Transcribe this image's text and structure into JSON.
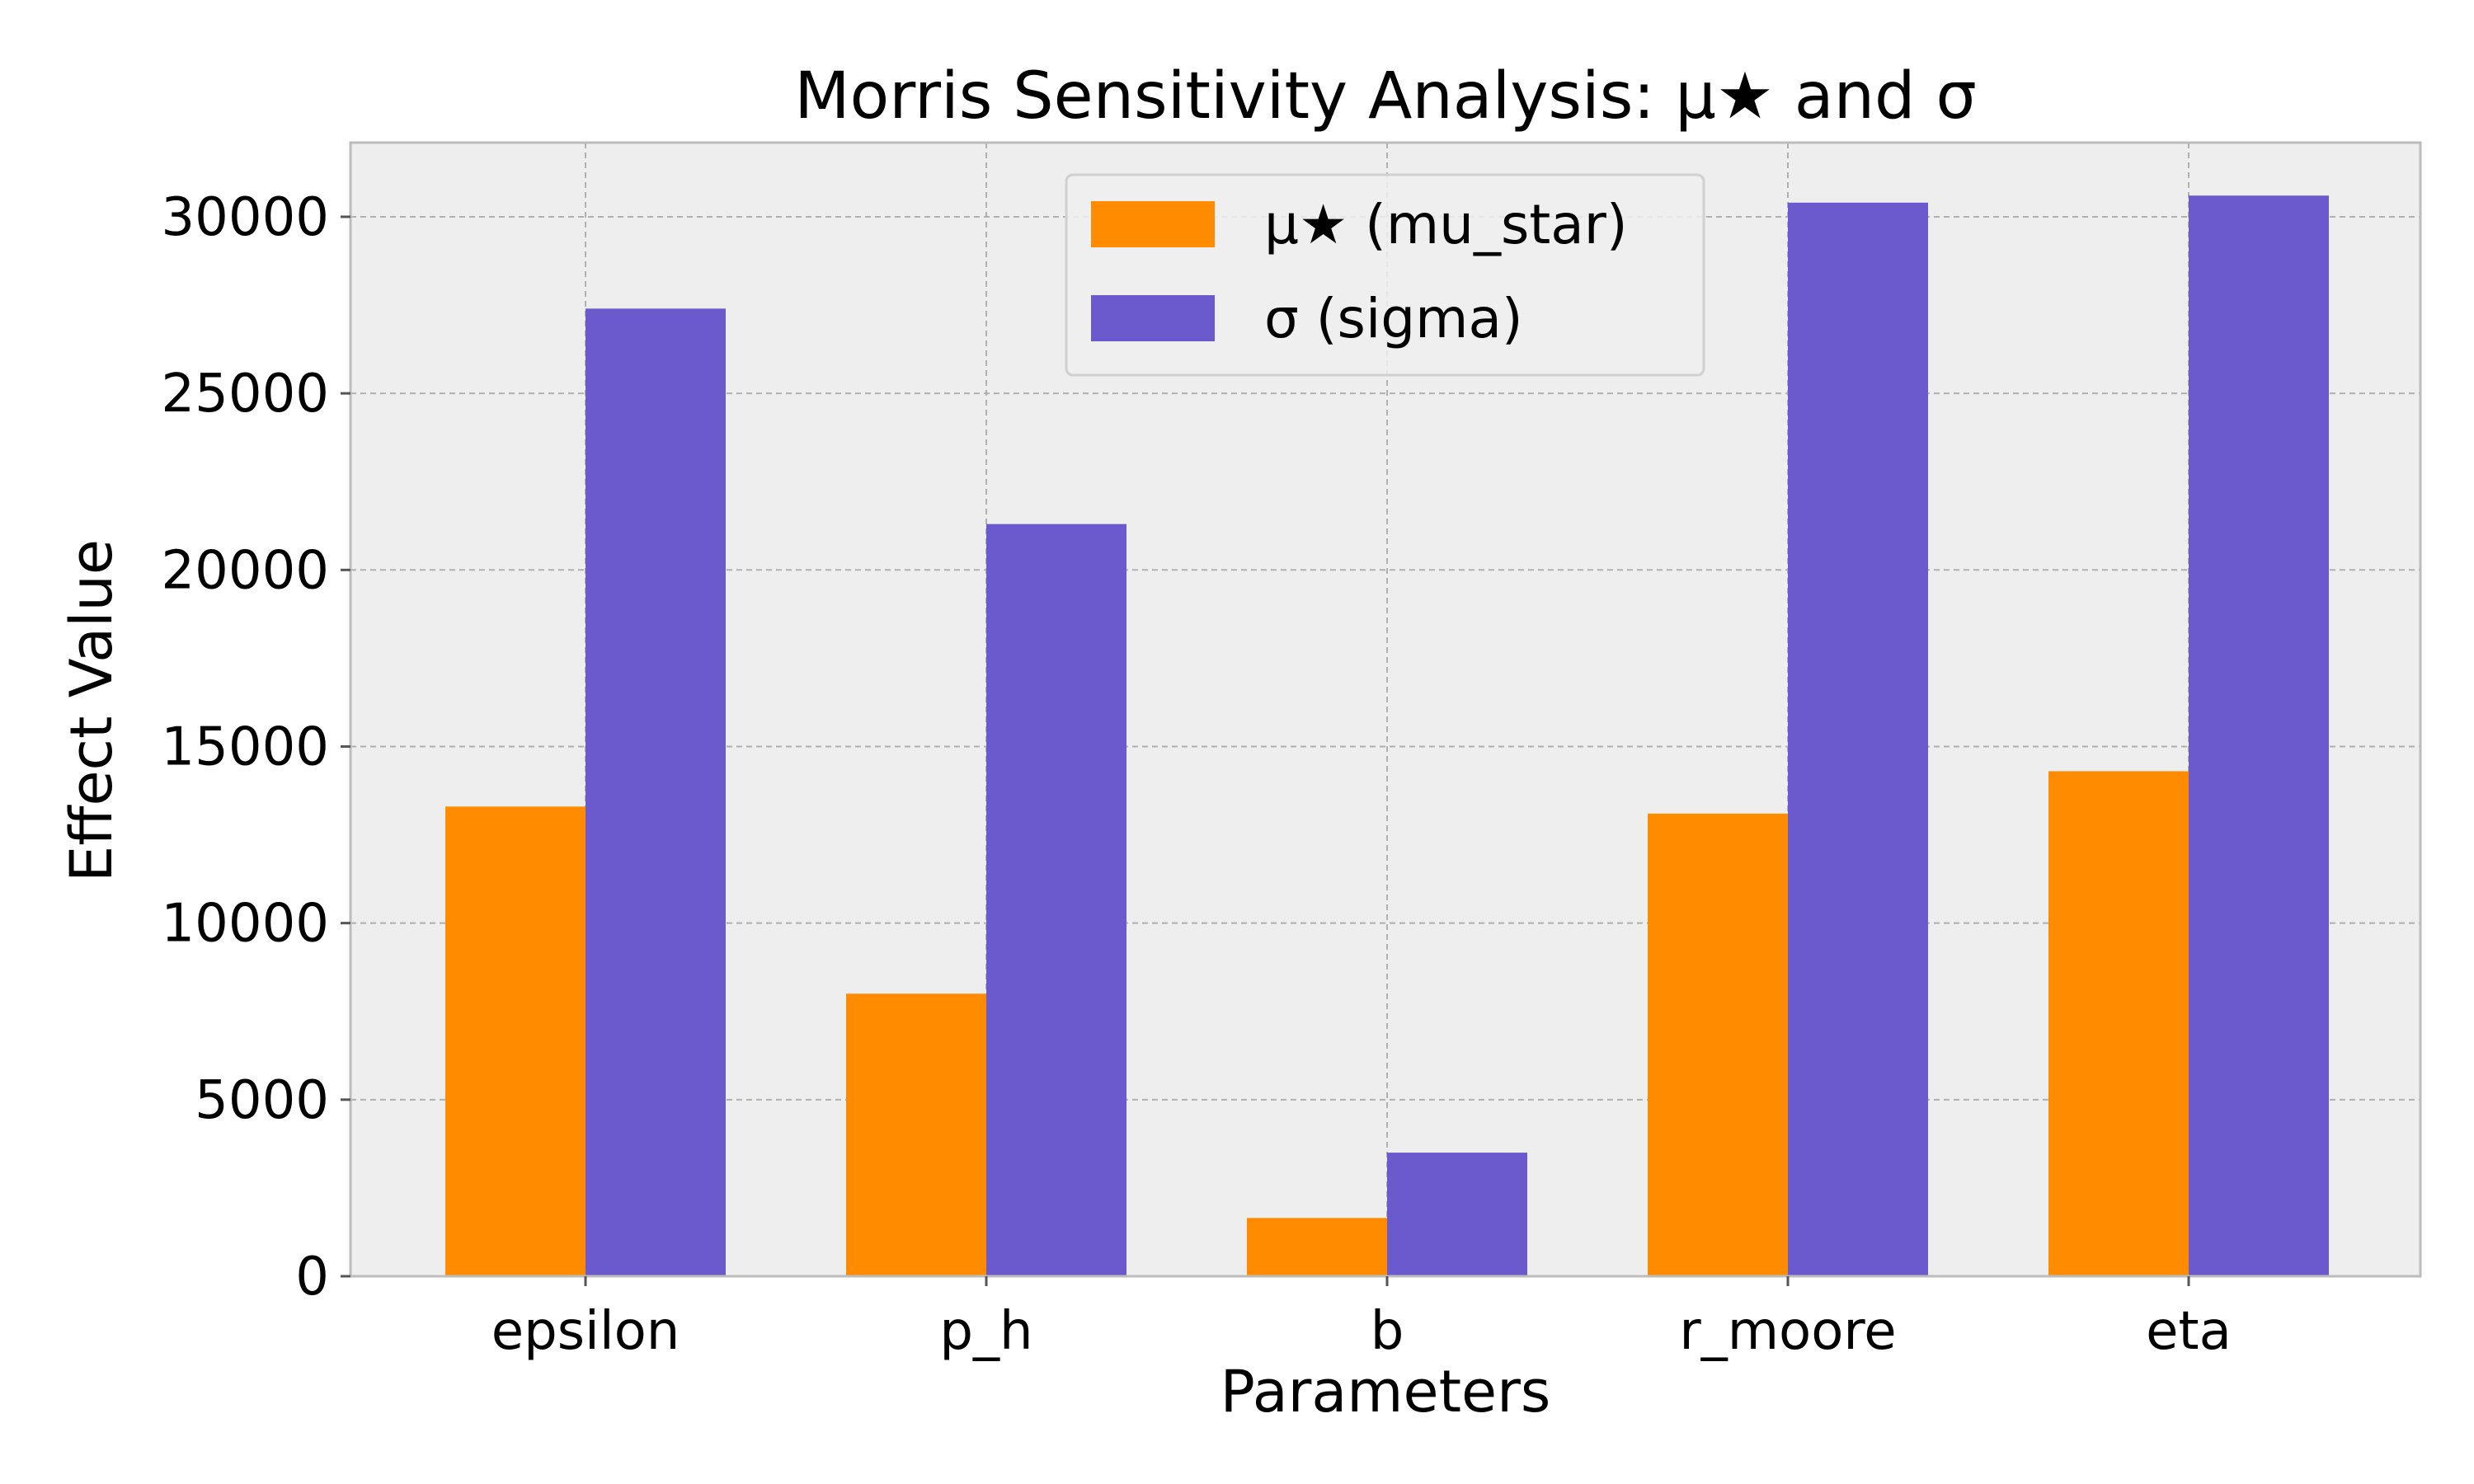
{
  "chart_data": {
    "type": "bar",
    "title": "Morris Sensitivity Analysis: μ★ and σ",
    "xlabel": "Parameters",
    "ylabel": "Effect Value",
    "categories": [
      "epsilon",
      "p_h",
      "b",
      "r_moore",
      "eta"
    ],
    "series": [
      {
        "name": "μ★ (mu_star)",
        "color": "#ff8c00",
        "values": [
          13300,
          8000,
          1650,
          13100,
          14300
        ]
      },
      {
        "name": "σ (sigma)",
        "color": "#6a5acd",
        "values": [
          27400,
          21300,
          3500,
          30400,
          30600
        ]
      }
    ],
    "ylim": [
      0,
      32100
    ],
    "yticks": [
      0,
      5000,
      10000,
      15000,
      20000,
      25000,
      30000
    ],
    "grid": true,
    "legend_position": "top-center"
  }
}
